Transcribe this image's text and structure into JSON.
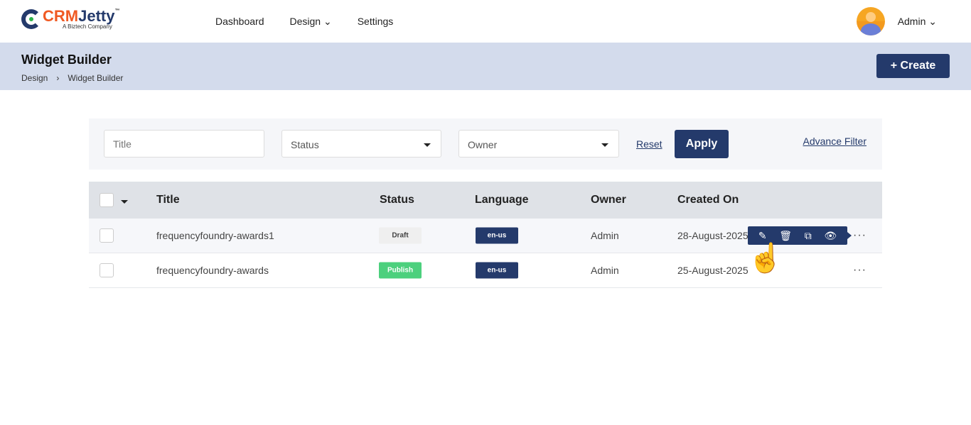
{
  "brand": {
    "name_part1": "CRM",
    "name_part2": "Jetty",
    "tm": "™",
    "tagline": "A Biztech Company"
  },
  "nav": [
    "Dashboard",
    "Design",
    "Settings"
  ],
  "user": {
    "name": "Admin"
  },
  "page": {
    "title": "Widget Builder",
    "breadcrumb": [
      "Design",
      "Widget Builder"
    ],
    "create_label": "+ Create"
  },
  "filter": {
    "title_placeholder": "Title",
    "status_placeholder": "Status",
    "owner_placeholder": "Owner",
    "reset": "Reset",
    "apply": "Apply",
    "advance": "Advance Filter"
  },
  "table": {
    "headers": [
      "Title",
      "Status",
      "Language",
      "Owner",
      "Created On"
    ],
    "rows": [
      {
        "title": "frequencyfoundry-awards1",
        "status": "Draft",
        "language": "en-us",
        "owner": "Admin",
        "created": "28-August-2025"
      },
      {
        "title": "frequencyfoundry-awards",
        "status": "Publish",
        "language": "en-us",
        "owner": "Admin",
        "created": "25-August-2025"
      }
    ]
  },
  "colors": {
    "primary": "#243a6b",
    "accent": "#f05a23",
    "publish": "#4cd07d",
    "band": "#d3dbec"
  }
}
